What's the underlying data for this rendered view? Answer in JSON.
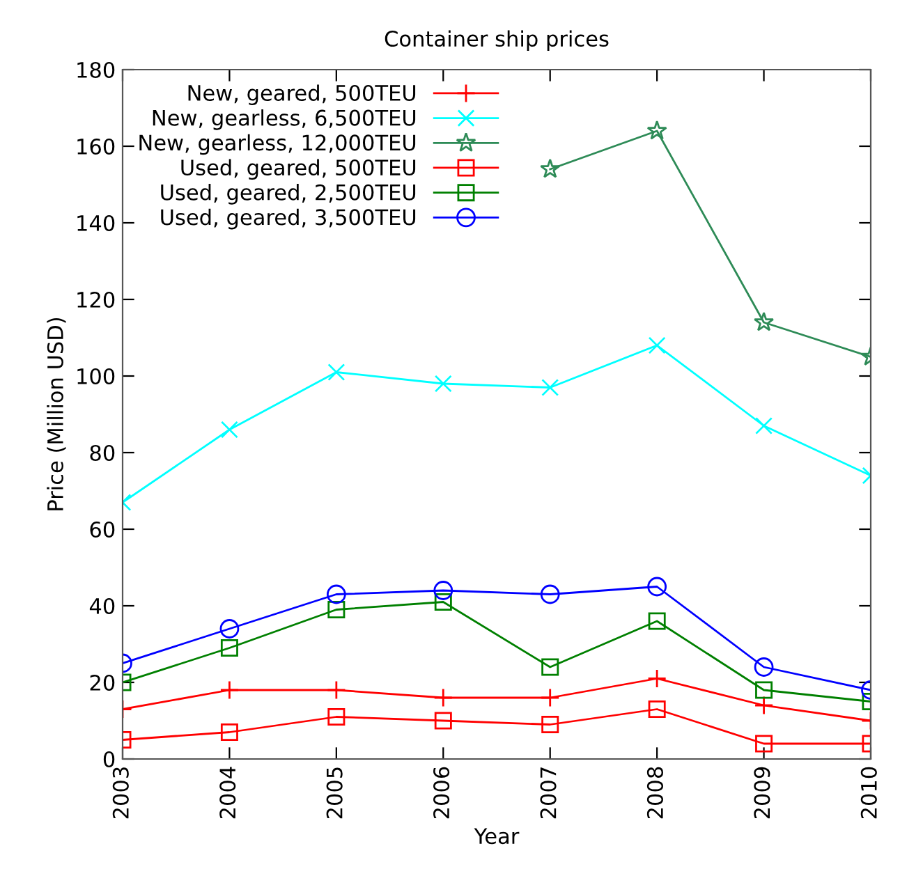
{
  "chart_data": {
    "type": "line",
    "title": "Container ship prices",
    "xlabel": "Year",
    "ylabel": "Price (Million USD)",
    "x": [
      2003,
      2004,
      2005,
      2006,
      2007,
      2008,
      2009,
      2010
    ],
    "xlim": [
      2003,
      2010
    ],
    "xticks": [
      2003,
      2004,
      2005,
      2006,
      2007,
      2008,
      2009,
      2010
    ],
    "ylim": [
      0,
      180
    ],
    "yticks": [
      0,
      20,
      40,
      60,
      80,
      100,
      120,
      140,
      160,
      180
    ],
    "grid": false,
    "legend": "top left",
    "series": [
      {
        "name": "New, geared, 500TEU",
        "color": "#ff0000",
        "marker": "plus",
        "values": [
          13,
          18,
          18,
          16,
          16,
          21,
          14,
          10
        ]
      },
      {
        "name": "New, gearless, 6,500TEU",
        "color": "#00ffff",
        "marker": "cross",
        "values": [
          67,
          86,
          101,
          98,
          97,
          108,
          87,
          74
        ]
      },
      {
        "name": "New, gearless, 12,000TEU",
        "color": "#2e8b57",
        "marker": "star",
        "values": [
          null,
          null,
          null,
          null,
          154,
          164,
          114,
          105
        ]
      },
      {
        "name": "Used, geared, 500TEU",
        "color": "#ff0000",
        "marker": "square",
        "values": [
          5,
          7,
          11,
          10,
          9,
          13,
          4,
          4
        ]
      },
      {
        "name": "Used, geared, 2,500TEU",
        "color": "#008000",
        "marker": "square",
        "values": [
          20,
          29,
          39,
          41,
          24,
          36,
          18,
          15
        ]
      },
      {
        "name": "Used, geared, 3,500TEU",
        "color": "#0000ff",
        "marker": "circle",
        "values": [
          25,
          34,
          43,
          44,
          43,
          45,
          24,
          18
        ]
      }
    ]
  }
}
